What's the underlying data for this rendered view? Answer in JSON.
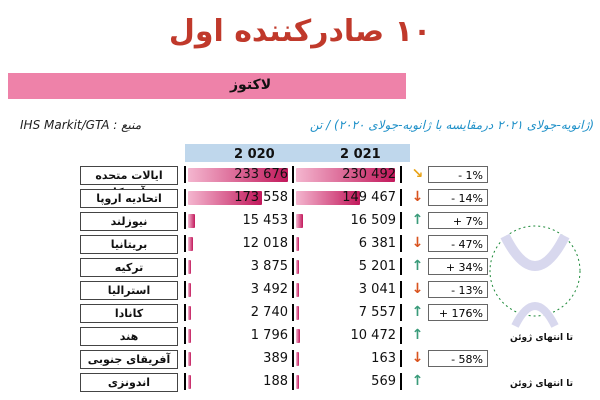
{
  "title": "۱۰ صادرکننده اول",
  "banner": "لاکتوز",
  "source": "منبع : IHS Markit/GTA",
  "subtitle": "(ژانویه-جولای ۲۰۲۱ درمقایسه با ژانویه-جولای ۲۰۲۰) / تن",
  "years": {
    "y2021": "2 021",
    "y2020": "2 020"
  },
  "rows": [
    {
      "label": "ایالات متحده آمریکا",
      "v2020": "233 676",
      "v2021": "230 492",
      "n2020": 233676,
      "n2021": 230492,
      "change": "- 1%",
      "arrow": "side"
    },
    {
      "label": "اتحادیه اروپا",
      "v2020": "173 558",
      "v2021": "149 467",
      "n2020": 173558,
      "n2021": 149467,
      "change": "- 14%",
      "arrow": "down"
    },
    {
      "label": "نیوزلند",
      "v2020": "15 453",
      "v2021": "16 509",
      "n2020": 15453,
      "n2021": 16509,
      "change": "+ 7%",
      "arrow": "up"
    },
    {
      "label": "بریتانیا",
      "v2020": "12 018",
      "v2021": "6 381",
      "n2020": 12018,
      "n2021": 6381,
      "change": "- 47%",
      "arrow": "down"
    },
    {
      "label": "ترکیه",
      "v2020": "3 875",
      "v2021": "5 201",
      "n2020": 3875,
      "n2021": 5201,
      "change": "+ 34%",
      "arrow": "up"
    },
    {
      "label": "استرالیا",
      "v2020": "3 492",
      "v2021": "3 041",
      "n2020": 3492,
      "n2021": 3041,
      "change": "- 13%",
      "arrow": "down"
    },
    {
      "label": "کانادا",
      "v2020": "2 740",
      "v2021": "7 557",
      "n2020": 2740,
      "n2021": 7557,
      "change": "+ 176%",
      "arrow": "up"
    },
    {
      "label": "هند",
      "v2020": "1 796",
      "v2021": "10 472",
      "n2020": 1796,
      "n2021": 10472,
      "change": "",
      "arrow": "up",
      "note": "تا انتهای ژوئن"
    },
    {
      "label": "آفریقای جنوبی",
      "v2020": "389",
      "v2021": "163",
      "n2020": 389,
      "n2021": 163,
      "change": "- 58%",
      "arrow": "down"
    },
    {
      "label": "اندونزی",
      "v2020": "188",
      "v2021": "569",
      "n2020": 188,
      "n2021": 569,
      "change": "",
      "arrow": "up",
      "note": "تا انتهای ژوئن"
    }
  ],
  "colors": {
    "title": "#c0392b",
    "banner": "#ee82a9",
    "bar": "#c2185b",
    "up": "#3a9b7a",
    "down": "#d9531e",
    "side": "#e8a317"
  }
}
